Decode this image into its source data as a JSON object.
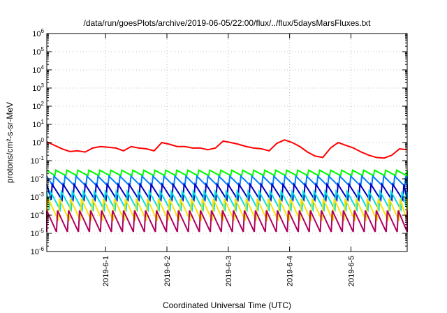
{
  "chart_data": {
    "type": "line",
    "title": "/data/run/goesPlots/archive/2019-06-05/22:00/flux/../flux/5daysMarsFluxes.txt",
    "xlabel": "Coordinated Universal Time (UTC)",
    "ylabel": "protons/cm²-s-sr-MeV",
    "yscale": "log",
    "ylim": [
      1e-06,
      1000000.0
    ],
    "xlim": [
      "2019-05-31T01:00",
      "2019-06-05T22:00"
    ],
    "x_ticks": [
      "2019-6-1",
      "2019-6-2",
      "2019-6-3",
      "2019-6-4",
      "2019-6-5"
    ],
    "y_ticks": [
      "1e-6",
      "1e-5",
      "1e-4",
      "1e-3",
      "1e-2",
      "1e-1",
      "1e0",
      "1e1",
      "1e2",
      "1e3",
      "1e4",
      "1e5",
      "1e6"
    ],
    "grid": true,
    "legend": "none",
    "series": [
      {
        "color": "#ff0000",
        "points": [
          [
            "2019-05-31T01:00",
            1.1
          ],
          [
            "2019-05-31T04:00",
            0.7
          ],
          [
            "2019-05-31T07:00",
            0.45
          ],
          [
            "2019-05-31T10:00",
            0.32
          ],
          [
            "2019-05-31T13:00",
            0.35
          ],
          [
            "2019-05-31T16:00",
            0.3
          ],
          [
            "2019-05-31T19:00",
            0.5
          ],
          [
            "2019-05-31T22:00",
            0.6
          ],
          [
            "2019-06-01T01:00",
            0.55
          ],
          [
            "2019-06-01T04:00",
            0.5
          ],
          [
            "2019-06-01T07:00",
            0.35
          ],
          [
            "2019-06-01T10:00",
            0.6
          ],
          [
            "2019-06-01T13:00",
            0.5
          ],
          [
            "2019-06-01T16:00",
            0.45
          ],
          [
            "2019-06-01T19:00",
            0.35
          ],
          [
            "2019-06-01T22:00",
            1.0
          ],
          [
            "2019-06-02T01:00",
            0.8
          ],
          [
            "2019-06-02T04:00",
            0.6
          ],
          [
            "2019-06-02T07:00",
            0.6
          ],
          [
            "2019-06-02T10:00",
            0.5
          ],
          [
            "2019-06-02T13:00",
            0.5
          ],
          [
            "2019-06-02T16:00",
            0.4
          ],
          [
            "2019-06-02T19:00",
            0.5
          ],
          [
            "2019-06-02T22:00",
            1.2
          ],
          [
            "2019-06-03T01:00",
            1.0
          ],
          [
            "2019-06-03T04:00",
            0.8
          ],
          [
            "2019-06-03T07:00",
            0.6
          ],
          [
            "2019-06-03T10:00",
            0.5
          ],
          [
            "2019-06-03T13:00",
            0.45
          ],
          [
            "2019-06-03T16:00",
            0.35
          ],
          [
            "2019-06-03T19:00",
            0.9
          ],
          [
            "2019-06-03T22:00",
            1.4
          ],
          [
            "2019-06-04T01:00",
            1.0
          ],
          [
            "2019-06-04T04:00",
            0.6
          ],
          [
            "2019-06-04T07:00",
            0.3
          ],
          [
            "2019-06-04T10:00",
            0.18
          ],
          [
            "2019-06-04T13:00",
            0.15
          ],
          [
            "2019-06-04T16:00",
            0.5
          ],
          [
            "2019-06-04T19:00",
            1.0
          ],
          [
            "2019-06-04T22:00",
            0.7
          ],
          [
            "2019-06-05T01:00",
            0.5
          ],
          [
            "2019-06-05T04:00",
            0.3
          ],
          [
            "2019-06-05T07:00",
            0.2
          ],
          [
            "2019-06-05T10:00",
            0.15
          ],
          [
            "2019-06-05T13:00",
            0.14
          ],
          [
            "2019-06-05T16:00",
            0.2
          ],
          [
            "2019-06-05T19:00",
            0.45
          ],
          [
            "2019-06-05T22:00",
            0.4
          ]
        ]
      },
      {
        "color": "#00ff00",
        "pattern": "sawtooth",
        "peak": 0.03,
        "trough": 0.015,
        "period_hours": 4.3
      },
      {
        "color": "#007fff",
        "pattern": "sawtooth",
        "peak": 0.014,
        "trough": 0.004,
        "period_hours": 4.3
      },
      {
        "color": "#0000c0",
        "pattern": "sawtooth",
        "peak": 0.005,
        "trough": 0.0007,
        "period_hours": 4.3
      },
      {
        "color": "#00e0e0",
        "pattern": "sawtooth",
        "peak": 0.002,
        "trough": 0.0002,
        "period_hours": 4.3
      },
      {
        "color": "#ffe000",
        "pattern": "sawtooth",
        "peak": 0.0008,
        "trough": 5e-05,
        "period_hours": 4.3
      },
      {
        "color": "#b00060",
        "pattern": "sawtooth",
        "peak": 0.00018,
        "trough": 1.2e-05,
        "period_hours": 4.3
      }
    ]
  }
}
